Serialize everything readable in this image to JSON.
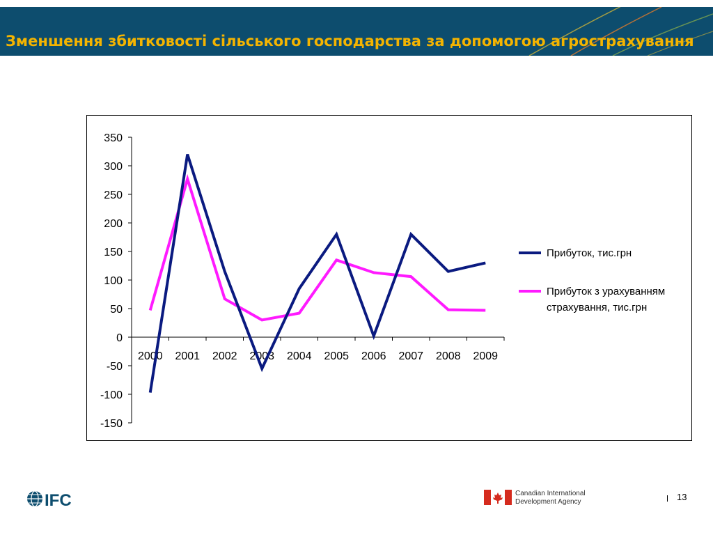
{
  "slide": {
    "title": "Зменшення збитковості сільського господарства за допомогою агрострахування",
    "page_number": "13"
  },
  "footer": {
    "ifc_logo_text": "IFC",
    "cida_line1": "Canadian International",
    "cida_line2": "Development Agency"
  },
  "colors": {
    "header_bg": "#0d4d6e",
    "title": "#f4b400",
    "series1": "#0a1a80",
    "series2": "#ff1aff"
  },
  "chart_data": {
    "type": "line",
    "categories": [
      "2000",
      "2001",
      "2002",
      "2003",
      "2004",
      "2005",
      "2006",
      "2007",
      "2008",
      "2009"
    ],
    "ylim": [
      -150,
      350
    ],
    "yticks": [
      -150,
      -100,
      -50,
      0,
      50,
      100,
      150,
      200,
      250,
      300,
      350
    ],
    "series": [
      {
        "name": "Прибуток, тис.грн",
        "color": "#0a1a80",
        "values": [
          -97,
          320,
          115,
          -55,
          85,
          180,
          2,
          180,
          115,
          130
        ]
      },
      {
        "name_line1": "Прибуток з урахуванням",
        "name_line2": "страхування, тис.грн",
        "color": "#ff1aff",
        "values": [
          47,
          277,
          67,
          30,
          42,
          135,
          113,
          106,
          48,
          47
        ]
      }
    ],
    "legend_position": "right",
    "grid": false
  }
}
